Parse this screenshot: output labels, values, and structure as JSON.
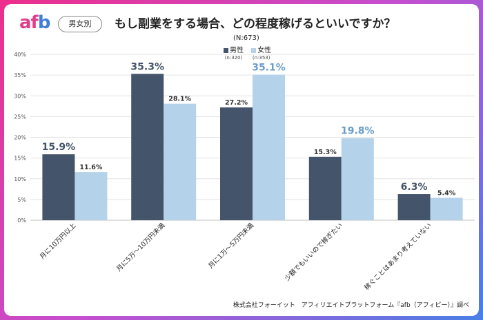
{
  "header": {
    "logo_a": "af",
    "logo_b": "b",
    "badge": "男女別",
    "title": "もし副業をする場合、どの程度稼げるといいですか？",
    "sample": "(N:673)"
  },
  "footer": "株式会社フォーイット　アフィリエイトプラットフォーム『afb（アフィビー）』調べ",
  "colors": {
    "male": "#44546a",
    "female": "#b4d2ea",
    "female_label": "#6a9cc8"
  },
  "chart_data": {
    "type": "bar",
    "categories": [
      "月に10万円以上",
      "月に5万～10万円未満",
      "月に1万～5万円未満",
      "少額でもいいので稼ぎたい",
      "稼ぐことはあまり考えていない"
    ],
    "series": [
      {
        "name": "男性",
        "n": "(n:320)",
        "values": [
          15.9,
          35.3,
          27.2,
          15.3,
          6.3
        ],
        "labels": [
          "15.9%",
          "35.3%",
          "27.2%",
          "15.3%",
          "6.3%"
        ]
      },
      {
        "name": "女性",
        "n": "(n:353)",
        "values": [
          11.6,
          28.1,
          35.1,
          19.8,
          5.4
        ],
        "labels": [
          "11.6%",
          "28.1%",
          "35.1%",
          "19.8%",
          "5.4%"
        ]
      }
    ],
    "ylim": [
      0,
      40
    ],
    "yticks": [
      "0%",
      "5%",
      "10%",
      "15%",
      "20%",
      "25%",
      "30%",
      "35%",
      "40%"
    ],
    "grid": true,
    "legend": "top-center"
  }
}
